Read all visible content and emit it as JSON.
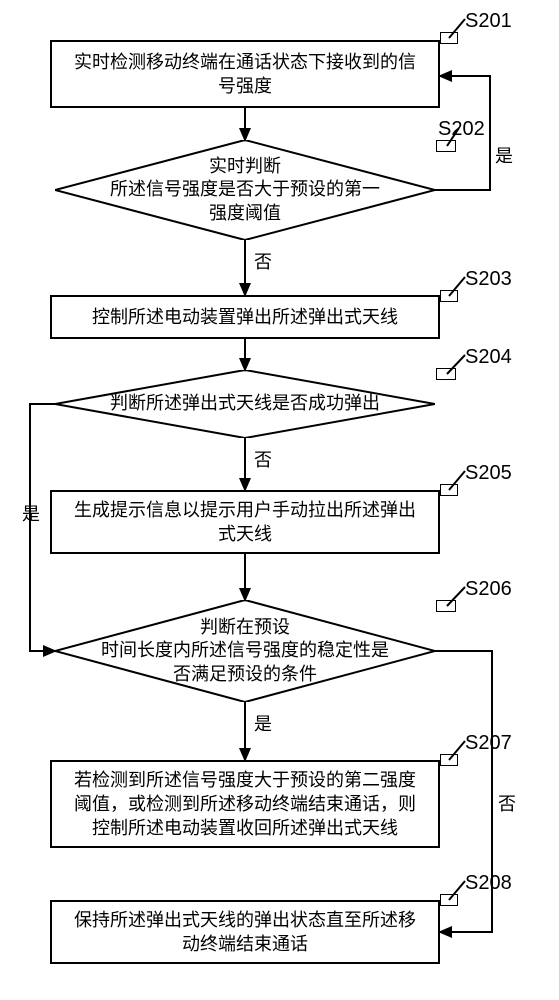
{
  "steps": {
    "s201": {
      "label": "S201",
      "text": "实时检测移动终端在通话状态下接收到的信\n号强度"
    },
    "s202": {
      "label": "S202",
      "text": "实时判断\n所述信号强度是否大于预设的第一\n强度阈值"
    },
    "s203": {
      "label": "S203",
      "text": "控制所述电动装置弹出所述弹出式天线"
    },
    "s204": {
      "label": "S204",
      "text": "判断所述弹出式天线是否成功弹出"
    },
    "s205": {
      "label": "S205",
      "text": "生成提示信息以提示用户手动拉出所述弹出\n式天线"
    },
    "s206": {
      "label": "S206",
      "text": "判断在预设\n时间长度内所述信号强度的稳定性是\n否满足预设的条件"
    },
    "s207": {
      "label": "S207",
      "text": "若检测到所述信号强度大于预设的第二强度\n阈值，或检测到所述移动终端结束通话，则\n控制所述电动装置收回所述弹出式天线"
    },
    "s208": {
      "label": "S208",
      "text": "保持所述弹出式天线的弹出状态直至所述移\n动终端结束通话"
    }
  },
  "edges": {
    "yes": "是",
    "no": "否"
  },
  "colors": {
    "stroke": "#000000",
    "background": "#ffffff"
  },
  "layout": {
    "rect_width": 390,
    "diamond_width": 380,
    "diamond_height": 100
  }
}
